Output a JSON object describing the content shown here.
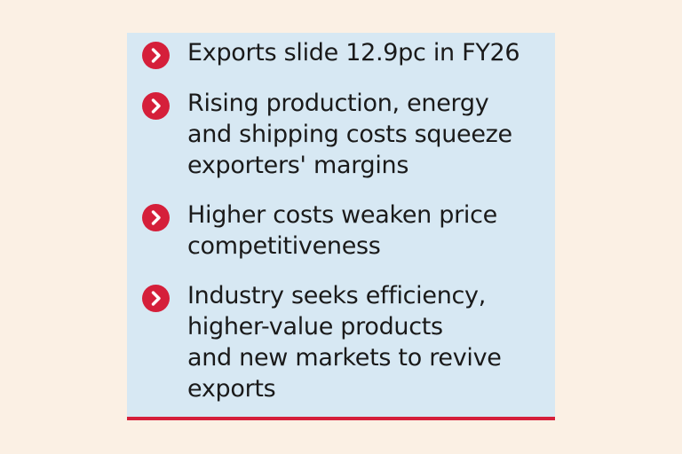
{
  "colors": {
    "page_background": "#fbf0e4",
    "card_background": "#d7e8f3",
    "accent_red": "#d51f3a",
    "text": "#1a1a1a"
  },
  "bullets": [
    {
      "icon": "chevron-right-icon",
      "text": "Exports slide 12.9pc in FY26"
    },
    {
      "icon": "chevron-right-icon",
      "text": "Rising production, energy\nand shipping costs squeeze\nexporters' margins"
    },
    {
      "icon": "chevron-right-icon",
      "text": "Higher costs weaken price\ncompetitiveness"
    },
    {
      "icon": "chevron-right-icon",
      "text": "Industry seeks efficiency,\nhigher-value products\nand new markets to revive\nexports"
    }
  ]
}
